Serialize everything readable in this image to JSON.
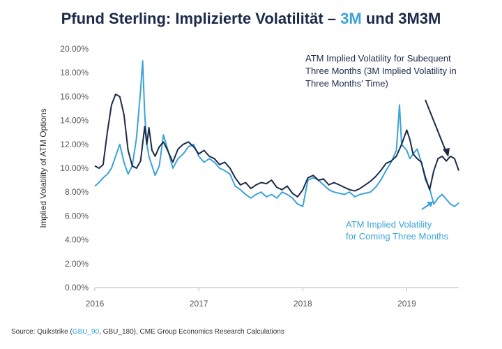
{
  "title": {
    "prefix": "Pfund Sterling: Implizierte Volatilität – ",
    "highlight": "3M",
    "suffix": " und 3M3M"
  },
  "source": {
    "prefix": "Source: Quikstrike (",
    "highlight": "GBU_90",
    "suffix": ", GBU_180), CME Group Economics Research Calculations"
  },
  "colors": {
    "dark": "#1b2a4a",
    "light": "#3aa3d9",
    "axis": "#bbbbbb"
  },
  "chart_data": {
    "type": "line",
    "ylabel": "Implied Volatility of ATM Options",
    "xlabel": "",
    "ylim": [
      0,
      20
    ],
    "y_ticks": [
      "0.00%",
      "2.00%",
      "4.00%",
      "6.00%",
      "8.00%",
      "10.00%",
      "12.00%",
      "14.00%",
      "16.00%",
      "18.00%",
      "20.00%"
    ],
    "x_ticks": [
      "2016",
      "2017",
      "2018",
      "2019"
    ],
    "xlim": [
      2016.0,
      2019.5
    ],
    "grid": false,
    "annotations": {
      "dark": [
        "ATM Implied Volatility for Subequent",
        "Three Months  (3M Implied Volatility in",
        "Three Months' Time)"
      ],
      "light": [
        "ATM Implied Volatility",
        "for Coming Three Months"
      ]
    },
    "series": [
      {
        "name": "3M3M",
        "color": "#1b2a4a",
        "x": [
          2016.0,
          2016.04,
          2016.08,
          2016.12,
          2016.16,
          2016.2,
          2016.24,
          2016.28,
          2016.32,
          2016.36,
          2016.4,
          2016.44,
          2016.48,
          2016.5,
          2016.52,
          2016.55,
          2016.58,
          2016.62,
          2016.66,
          2016.7,
          2016.75,
          2016.8,
          2016.85,
          2016.9,
          2016.95,
          2017.0,
          2017.05,
          2017.1,
          2017.15,
          2017.2,
          2017.25,
          2017.3,
          2017.35,
          2017.4,
          2017.45,
          2017.5,
          2017.55,
          2017.6,
          2017.65,
          2017.7,
          2017.75,
          2017.8,
          2017.85,
          2017.9,
          2017.95,
          2018.0,
          2018.05,
          2018.1,
          2018.15,
          2018.2,
          2018.25,
          2018.3,
          2018.35,
          2018.4,
          2018.45,
          2018.5,
          2018.55,
          2018.6,
          2018.65,
          2018.7,
          2018.75,
          2018.8,
          2018.85,
          2018.9,
          2018.95,
          2019.0,
          2019.03,
          2019.06,
          2019.1,
          2019.14,
          2019.18,
          2019.22,
          2019.26,
          2019.3,
          2019.34,
          2019.38,
          2019.42,
          2019.46,
          2019.5
        ],
        "values": [
          10.2,
          10.0,
          10.3,
          13.0,
          15.3,
          16.2,
          16.0,
          14.5,
          11.5,
          10.2,
          10.0,
          10.6,
          13.5,
          12.0,
          13.4,
          11.5,
          11.0,
          11.8,
          12.2,
          11.5,
          10.5,
          11.6,
          12.0,
          12.2,
          11.8,
          11.2,
          11.5,
          11.0,
          10.8,
          10.3,
          10.5,
          10.0,
          9.2,
          8.6,
          8.8,
          8.3,
          8.6,
          8.8,
          8.7,
          9.0,
          8.4,
          8.2,
          8.5,
          7.9,
          7.6,
          8.2,
          9.2,
          9.4,
          9.0,
          9.1,
          8.6,
          8.8,
          8.6,
          8.4,
          8.2,
          8.1,
          8.3,
          8.6,
          8.9,
          9.3,
          9.8,
          10.4,
          10.6,
          11.0,
          12.0,
          13.2,
          12.4,
          11.2,
          10.8,
          10.5,
          9.2,
          8.2,
          9.8,
          10.8,
          11.0,
          10.6,
          11.0,
          10.8,
          9.8
        ]
      },
      {
        "name": "3M",
        "color": "#3aa3d9",
        "x": [
          2016.0,
          2016.04,
          2016.08,
          2016.12,
          2016.16,
          2016.2,
          2016.24,
          2016.28,
          2016.32,
          2016.36,
          2016.4,
          2016.44,
          2016.46,
          2016.48,
          2016.5,
          2016.52,
          2016.55,
          2016.58,
          2016.62,
          2016.66,
          2016.7,
          2016.75,
          2016.8,
          2016.85,
          2016.9,
          2016.95,
          2017.0,
          2017.05,
          2017.1,
          2017.15,
          2017.2,
          2017.25,
          2017.3,
          2017.35,
          2017.4,
          2017.45,
          2017.5,
          2017.55,
          2017.6,
          2017.65,
          2017.7,
          2017.75,
          2017.8,
          2017.85,
          2017.9,
          2017.95,
          2018.0,
          2018.05,
          2018.1,
          2018.15,
          2018.2,
          2018.25,
          2018.3,
          2018.35,
          2018.4,
          2018.45,
          2018.5,
          2018.55,
          2018.6,
          2018.65,
          2018.7,
          2018.75,
          2018.8,
          2018.85,
          2018.9,
          2018.93,
          2018.95,
          2019.0,
          2019.03,
          2019.06,
          2019.1,
          2019.14,
          2019.18,
          2019.22,
          2019.26,
          2019.3,
          2019.34,
          2019.38,
          2019.42,
          2019.46,
          2019.5
        ],
        "values": [
          8.5,
          8.8,
          9.2,
          9.5,
          10.0,
          11.0,
          12.0,
          10.5,
          9.5,
          10.2,
          12.5,
          16.5,
          19.0,
          14.5,
          12.0,
          11.0,
          10.2,
          9.4,
          10.2,
          12.8,
          11.6,
          10.0,
          10.8,
          11.2,
          11.8,
          12.0,
          11.0,
          10.5,
          10.8,
          10.5,
          10.0,
          9.8,
          9.5,
          8.5,
          8.2,
          7.8,
          7.5,
          7.8,
          8.0,
          7.6,
          7.8,
          7.5,
          8.0,
          7.8,
          7.5,
          7.0,
          6.8,
          9.0,
          9.2,
          9.0,
          8.6,
          8.2,
          8.0,
          7.9,
          7.8,
          8.0,
          7.6,
          7.8,
          7.9,
          8.0,
          8.4,
          9.0,
          9.8,
          10.5,
          11.5,
          15.3,
          12.0,
          11.5,
          10.8,
          11.2,
          11.6,
          10.5,
          9.0,
          8.3,
          7.0,
          7.5,
          7.8,
          7.4,
          7.0,
          6.8,
          7.1
        ]
      }
    ]
  }
}
